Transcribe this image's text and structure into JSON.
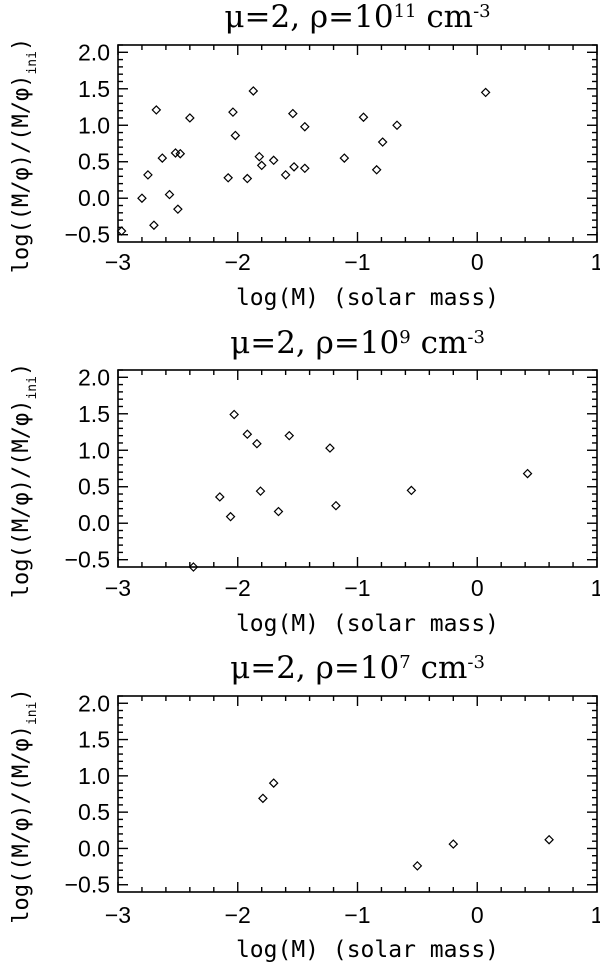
{
  "shared": {
    "xlabel": "log(M) (solar mass)",
    "ylabel_main": "log((M/φ)/(M/φ)",
    "ylabel_sub": "ini",
    "ylabel_end": ")",
    "title_prefix": "μ=2, ρ=10",
    "title_unit": " cm",
    "title_unit_exp": "-3"
  },
  "chart_data": [
    {
      "type": "scatter",
      "title_exp": "11",
      "xlim": [
        -3,
        1
      ],
      "ylim": [
        -0.6,
        2.1
      ],
      "xticks": [
        -3,
        -2,
        -1,
        0,
        1
      ],
      "xtick_labels": [
        "−3",
        "−2",
        "−1",
        "0",
        "1"
      ],
      "yticks": [
        -0.5,
        0.0,
        0.5,
        1.0,
        1.5,
        2.0
      ],
      "ytick_labels": [
        "−0.5",
        "0.0",
        "0.5",
        "1.0",
        "1.5",
        "2.0"
      ],
      "points": [
        [
          -2.97,
          -0.45
        ],
        [
          -2.8,
          0.0
        ],
        [
          -2.75,
          0.32
        ],
        [
          -2.7,
          -0.37
        ],
        [
          -2.68,
          1.21
        ],
        [
          -2.63,
          0.55
        ],
        [
          -2.57,
          0.05
        ],
        [
          -2.52,
          0.62
        ],
        [
          -2.5,
          -0.15
        ],
        [
          -2.48,
          0.61
        ],
        [
          -2.4,
          1.1
        ],
        [
          -2.08,
          0.28
        ],
        [
          -2.04,
          1.18
        ],
        [
          -2.02,
          0.86
        ],
        [
          -1.92,
          0.27
        ],
        [
          -1.87,
          1.47
        ],
        [
          -1.82,
          0.57
        ],
        [
          -1.8,
          0.45
        ],
        [
          -1.7,
          0.52
        ],
        [
          -1.6,
          0.32
        ],
        [
          -1.54,
          1.16
        ],
        [
          -1.53,
          0.43
        ],
        [
          -1.44,
          0.98
        ],
        [
          -1.44,
          0.41
        ],
        [
          -1.11,
          0.55
        ],
        [
          -0.95,
          1.11
        ],
        [
          -0.84,
          0.39
        ],
        [
          -0.79,
          0.77
        ],
        [
          -0.67,
          1.0
        ],
        [
          0.07,
          1.45
        ]
      ]
    },
    {
      "type": "scatter",
      "title_exp": "9",
      "xlim": [
        -3,
        1
      ],
      "ylim": [
        -0.6,
        2.1
      ],
      "xticks": [
        -3,
        -2,
        -1,
        0,
        1
      ],
      "xtick_labels": [
        "−3",
        "−2",
        "−1",
        "0",
        "1"
      ],
      "yticks": [
        -0.5,
        0.0,
        0.5,
        1.0,
        1.5,
        2.0
      ],
      "ytick_labels": [
        "−0.5",
        "0.0",
        "0.5",
        "1.0",
        "1.5",
        "2.0"
      ],
      "points": [
        [
          -2.37,
          -0.6
        ],
        [
          -2.15,
          0.36
        ],
        [
          -2.06,
          0.09
        ],
        [
          -2.03,
          1.49
        ],
        [
          -1.92,
          1.22
        ],
        [
          -1.84,
          1.09
        ],
        [
          -1.81,
          0.44
        ],
        [
          -1.66,
          0.16
        ],
        [
          -1.57,
          1.2
        ],
        [
          -1.23,
          1.03
        ],
        [
          -1.18,
          0.24
        ],
        [
          -0.55,
          0.45
        ],
        [
          0.42,
          0.68
        ]
      ]
    },
    {
      "type": "scatter",
      "title_exp": "7",
      "xlim": [
        -3,
        1
      ],
      "ylim": [
        -0.6,
        2.1
      ],
      "xticks": [
        -3,
        -2,
        -1,
        0,
        1
      ],
      "xtick_labels": [
        "−3",
        "−2",
        "−1",
        "0",
        "1"
      ],
      "yticks": [
        -0.5,
        0.0,
        0.5,
        1.0,
        1.5,
        2.0
      ],
      "ytick_labels": [
        "−0.5",
        "0.0",
        "0.5",
        "1.0",
        "1.5",
        "2.0"
      ],
      "points": [
        [
          -1.79,
          0.69
        ],
        [
          -1.7,
          0.9
        ],
        [
          -0.5,
          -0.24
        ],
        [
          -0.2,
          0.06
        ],
        [
          0.6,
          0.12
        ]
      ]
    }
  ]
}
